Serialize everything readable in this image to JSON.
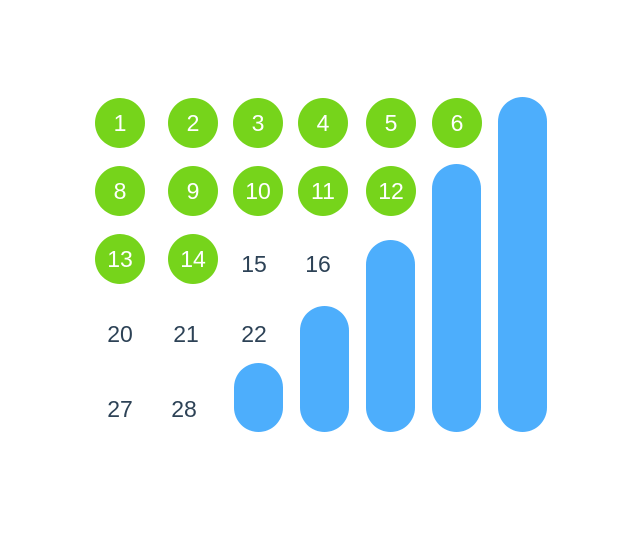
{
  "colors": {
    "marked_circle": "#76d41b",
    "bar": "#4daefc",
    "plain_text": "#2d4256",
    "marked_text": "#ffffff",
    "background": "#ffffff"
  },
  "days": [
    {
      "label": "1",
      "marked": true
    },
    {
      "label": "2",
      "marked": true
    },
    {
      "label": "3",
      "marked": true
    },
    {
      "label": "4",
      "marked": true
    },
    {
      "label": "5",
      "marked": true
    },
    {
      "label": "6",
      "marked": true
    },
    {
      "label": "8",
      "marked": true
    },
    {
      "label": "9",
      "marked": true
    },
    {
      "label": "10",
      "marked": true
    },
    {
      "label": "11",
      "marked": true
    },
    {
      "label": "12",
      "marked": true
    },
    {
      "label": "13",
      "marked": true
    },
    {
      "label": "14",
      "marked": true
    },
    {
      "label": "15",
      "marked": false
    },
    {
      "label": "16",
      "marked": false
    },
    {
      "label": "20",
      "marked": false
    },
    {
      "label": "21",
      "marked": false
    },
    {
      "label": "22",
      "marked": false
    },
    {
      "label": "27",
      "marked": false
    },
    {
      "label": "28",
      "marked": false
    }
  ],
  "bars": [
    {
      "level": 0.2
    },
    {
      "level": 0.37
    },
    {
      "level": 0.57
    },
    {
      "level": 0.8
    },
    {
      "level": 1.0
    }
  ]
}
